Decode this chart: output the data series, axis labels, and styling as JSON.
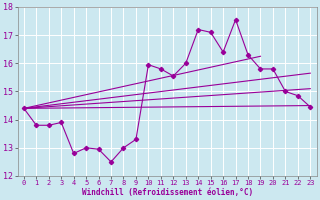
{
  "xlabel": "Windchill (Refroidissement éolien,°C)",
  "bg_color": "#cce8f0",
  "line_color": "#990099",
  "xlim": [
    -0.5,
    23.5
  ],
  "ylim": [
    12,
    18
  ],
  "yticks": [
    12,
    13,
    14,
    15,
    16,
    17,
    18
  ],
  "xticks": [
    0,
    1,
    2,
    3,
    4,
    5,
    6,
    7,
    8,
    9,
    10,
    11,
    12,
    13,
    14,
    15,
    16,
    17,
    18,
    19,
    20,
    21,
    22,
    23
  ],
  "x_vals": [
    0,
    1,
    2,
    3,
    4,
    5,
    6,
    7,
    8,
    9,
    10,
    11,
    12,
    13,
    14,
    15,
    16,
    17,
    18,
    19,
    20,
    21,
    22,
    23
  ],
  "y_main": [
    14.4,
    13.8,
    13.8,
    13.9,
    12.8,
    13.0,
    12.95,
    12.5,
    13.0,
    13.3,
    15.95,
    15.8,
    15.55,
    16.0,
    17.2,
    17.1,
    16.4,
    17.55,
    16.3,
    15.8,
    15.8,
    15.0,
    14.85,
    14.45
  ],
  "straight_lines": [
    {
      "x0": 0,
      "y0": 14.4,
      "x1": 23,
      "y1": 14.5
    },
    {
      "x0": 0,
      "y0": 14.4,
      "x1": 23,
      "y1": 15.6
    },
    {
      "x0": 0,
      "y0": 14.4,
      "x1": 19,
      "y1": 16.25
    },
    {
      "x0": 0,
      "y0": 14.4,
      "x1": 23,
      "y1": 14.45
    }
  ]
}
